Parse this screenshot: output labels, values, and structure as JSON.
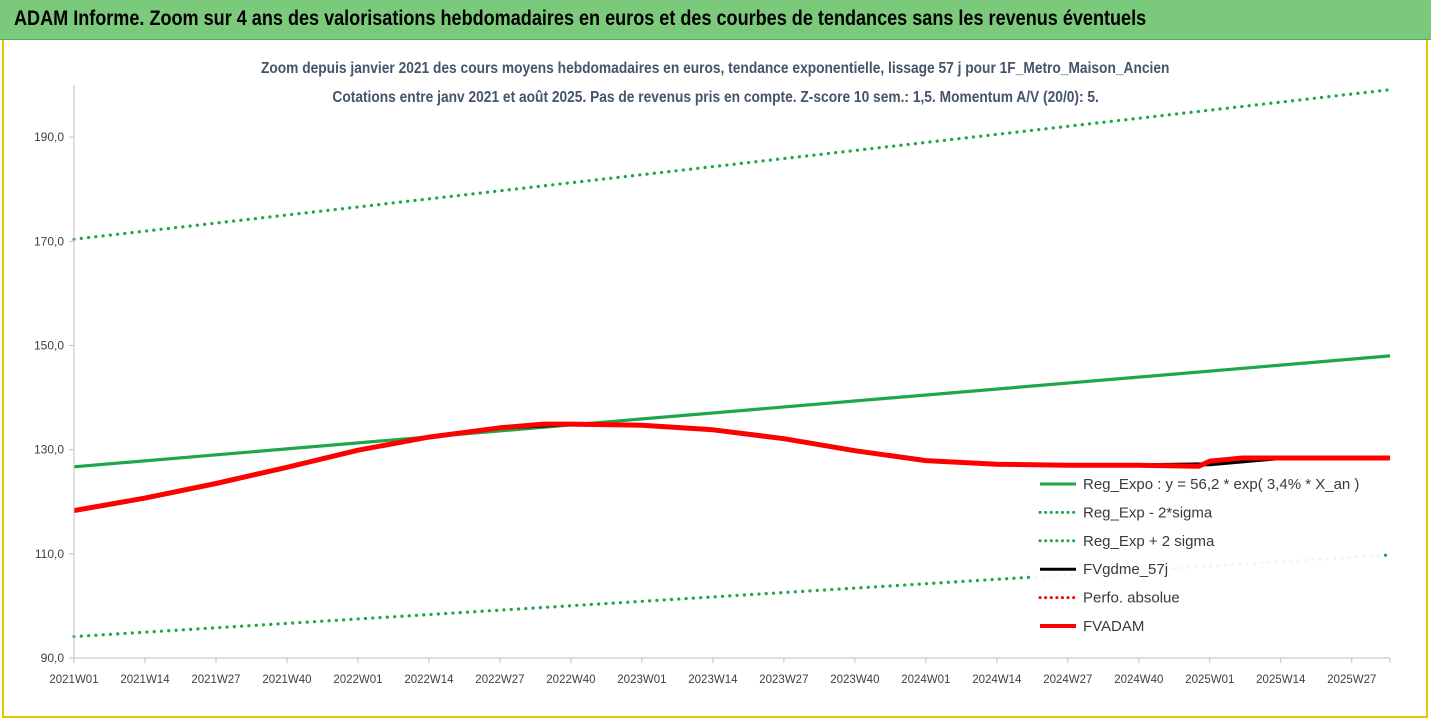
{
  "header": {
    "banner_title": "ADAM Informe. Zoom sur 4 ans des valorisations hebdomadaires en euros et des courbes de tendances sans les revenus éventuels"
  },
  "chart_data": {
    "type": "line",
    "title": "Zoom depuis janvier 2021 des cours moyens hebdomadaires en euros, tendance exponentielle, lissage 57 j pour 1F_Metro_Maison_Ancien",
    "subtitle": "Cotations entre janv 2021 et août 2025.  Pas de revenus pris en compte. Z-score 10 sem.: 1,5. Momentum A/V (20/0): 5.",
    "xlabel": "",
    "ylabel": "",
    "ylim": [
      90,
      200
    ],
    "yticks": [
      "90,0",
      "110,0",
      "130,0",
      "150,0",
      "170,0",
      "190,0"
    ],
    "ytick_values": [
      90,
      110,
      130,
      150,
      170,
      190
    ],
    "xticks": [
      "2021W01",
      "2021W14",
      "2021W27",
      "2021W40",
      "2022W01",
      "2022W14",
      "2022W27",
      "2022W40",
      "2023W01",
      "2023W14",
      "2023W27",
      "2023W40",
      "2024W01",
      "2024W14",
      "2024W27",
      "2024W40",
      "2025W01",
      "2025W14",
      "2025W27"
    ],
    "x_last_week_index": 241,
    "grid": {
      "horizontal": false,
      "vertical": false
    },
    "legend_position": "bottom-right",
    "series": [
      {
        "name": "Reg_Expo : y = 56,2 * exp( 3,4% *  X_an )",
        "color": "#1fa64a",
        "style": "solid",
        "x": [
          0,
          241
        ],
        "y": [
          126.7,
          148.0
        ]
      },
      {
        "name": "Reg_Exp - 2*sigma",
        "color": "#1fa64a",
        "style": "dotted",
        "x": [
          0,
          241
        ],
        "y": [
          94.1,
          109.8
        ]
      },
      {
        "name": "Reg_Exp + 2 sigma",
        "color": "#1fa64a",
        "style": "dotted",
        "x": [
          0,
          241
        ],
        "y": [
          170.4,
          199.1
        ]
      },
      {
        "name": "FVgdme_57j",
        "color": "#000000",
        "style": "solid",
        "x": [
          0,
          13,
          26,
          39,
          52,
          65,
          78,
          91,
          104,
          117,
          130,
          143,
          156,
          169,
          182,
          195,
          208,
          221,
          234,
          241
        ],
        "y": [
          118.3,
          120.7,
          123.5,
          126.6,
          129.9,
          132.4,
          134.2,
          134.9,
          134.7,
          133.8,
          132.1,
          129.8,
          127.9,
          127.2,
          127.0,
          127.0,
          127.2,
          128.4,
          128.4,
          128.4
        ]
      },
      {
        "name": "Perfo. absolue",
        "color": "#ff0000",
        "style": "dotted",
        "x": [],
        "y": []
      },
      {
        "name": "FVADAM",
        "color": "#ff0000",
        "style": "solid",
        "x": [
          0,
          13,
          26,
          39,
          52,
          65,
          78,
          86,
          91,
          104,
          117,
          130,
          143,
          156,
          169,
          182,
          195,
          206,
          208,
          214,
          221,
          234,
          241
        ],
        "y": [
          118.3,
          120.7,
          123.5,
          126.6,
          129.9,
          132.4,
          134.2,
          134.9,
          134.9,
          134.7,
          133.8,
          132.1,
          129.8,
          127.9,
          127.2,
          127.0,
          127.0,
          126.8,
          127.8,
          128.4,
          128.4,
          128.4,
          128.4
        ]
      }
    ]
  }
}
